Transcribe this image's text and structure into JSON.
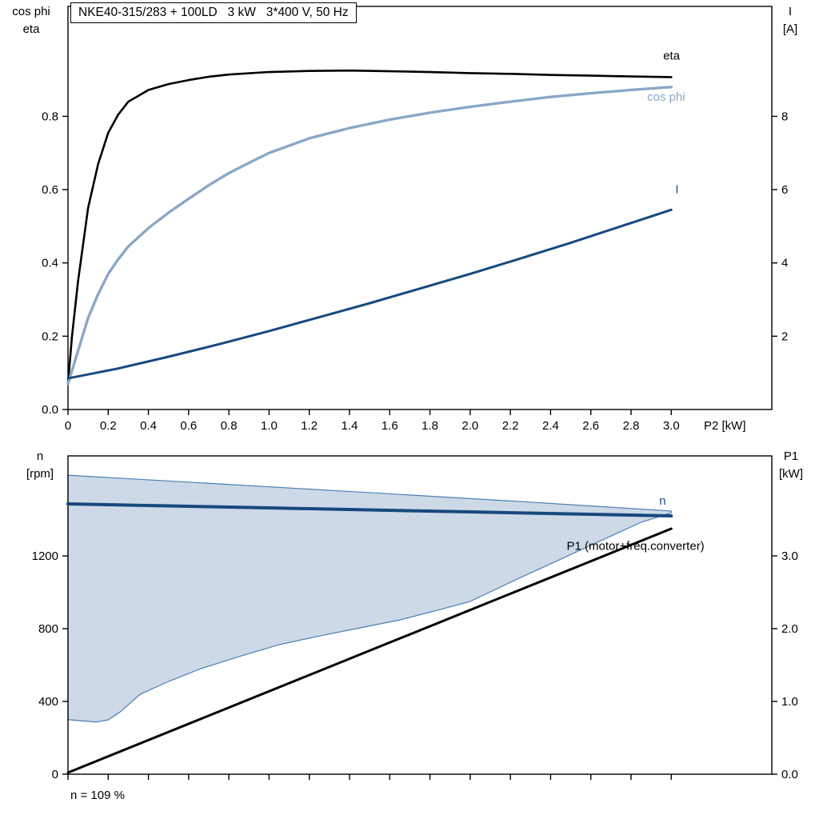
{
  "axis_titles": {
    "top_left_line1": "cos phi",
    "top_left_line2": "eta",
    "top_right_line1": "I",
    "top_right_line2": "[A]",
    "bottom_left_line1": "n",
    "bottom_left_line2": "[rpm]",
    "bottom_right_line1": "P1",
    "bottom_right_line2": "[kW]"
  },
  "colors": {
    "eta": "#000000",
    "cos_phi": "#8aa7c7",
    "current": "#17497e",
    "speed": "#17497e",
    "p1": "#000000",
    "band_fill": "#cdd9e6",
    "band_stroke": "#4a7fb5",
    "axis": "#000000"
  },
  "chart_data": [
    {
      "name": "chart-p2-eta-cosphi-current",
      "type": "line",
      "title": "NKE40-315/283 + 100LD   3 kW   3*400 V, 50 Hz",
      "xlabel": "P2 [kW]",
      "ylabel_left": "cos phi / eta",
      "ylabel_right": "I [A]",
      "grid": false,
      "legend_position": "inline-labels",
      "xlim": [
        0,
        3.5
      ],
      "ylim_left": [
        0,
        1.1
      ],
      "ylim_right": [
        0,
        11
      ],
      "x_ticks": [
        0,
        0.2,
        0.4,
        0.6,
        0.8,
        1.0,
        1.2,
        1.4,
        1.6,
        1.8,
        2.0,
        2.2,
        2.4,
        2.6,
        2.8,
        3.0
      ],
      "x_tick_labels": [
        "0",
        "0.2",
        "0.4",
        "0.6",
        "0.8",
        "1.0",
        "1.2",
        "1.4",
        "1.6",
        "1.8",
        "2.0",
        "2.2",
        "2.4",
        "2.6",
        "2.8",
        "3.0"
      ],
      "y_ticks_left": [
        0,
        0.2,
        0.4,
        0.6,
        0.8
      ],
      "y_tick_labels_left": [
        "0.0",
        "0.2",
        "0.4",
        "0.6",
        "0.8"
      ],
      "y_ticks_right": [
        2,
        4,
        6,
        8
      ],
      "y_tick_labels_right": [
        "2",
        "4",
        "6",
        "8"
      ],
      "series": [
        {
          "name": "eta",
          "axis": "left",
          "color_key": "eta",
          "width": 2.6,
          "label": "eta",
          "label_at": [
            2.96,
            0.955
          ],
          "x": [
            0,
            0.02,
            0.05,
            0.1,
            0.15,
            0.2,
            0.25,
            0.3,
            0.4,
            0.5,
            0.6,
            0.7,
            0.8,
            1.0,
            1.2,
            1.4,
            1.6,
            1.8,
            2.0,
            2.2,
            2.4,
            2.6,
            2.8,
            3.0
          ],
          "y": [
            0.07,
            0.2,
            0.35,
            0.55,
            0.67,
            0.755,
            0.805,
            0.84,
            0.872,
            0.888,
            0.899,
            0.908,
            0.914,
            0.921,
            0.924,
            0.925,
            0.923,
            0.921,
            0.918,
            0.916,
            0.913,
            0.911,
            0.909,
            0.907
          ]
        },
        {
          "name": "cos phi",
          "axis": "left",
          "color_key": "cos_phi",
          "width": 3.4,
          "label": "cos phi",
          "label_at": [
            2.88,
            0.842
          ],
          "x": [
            0,
            0.05,
            0.1,
            0.15,
            0.2,
            0.25,
            0.3,
            0.4,
            0.5,
            0.6,
            0.7,
            0.8,
            0.9,
            1.0,
            1.2,
            1.4,
            1.6,
            1.8,
            2.0,
            2.2,
            2.4,
            2.6,
            2.8,
            3.0
          ],
          "y": [
            0.07,
            0.16,
            0.25,
            0.315,
            0.37,
            0.41,
            0.445,
            0.495,
            0.537,
            0.575,
            0.612,
            0.645,
            0.673,
            0.7,
            0.74,
            0.768,
            0.791,
            0.81,
            0.826,
            0.84,
            0.853,
            0.863,
            0.872,
            0.88
          ]
        },
        {
          "name": "I",
          "axis": "right",
          "color_key": "current",
          "width": 3,
          "label": "I",
          "label_at": [
            3.02,
            5.9
          ],
          "x": [
            0,
            0.25,
            0.5,
            0.75,
            1.0,
            1.25,
            1.5,
            1.75,
            2.0,
            2.25,
            2.5,
            2.75,
            3.0
          ],
          "y": [
            0.85,
            1.12,
            1.44,
            1.78,
            2.14,
            2.52,
            2.9,
            3.3,
            3.7,
            4.12,
            4.55,
            5.0,
            5.45
          ]
        }
      ]
    },
    {
      "name": "chart-p2-speed-p1",
      "type": "line",
      "title": "",
      "xlabel": "",
      "ylabel_left": "n [rpm]",
      "ylabel_right": "P1 [kW]",
      "grid": false,
      "legend_position": "inline-labels",
      "annotation": "n = 109 %",
      "xlim": [
        0,
        3.5
      ],
      "ylim_left": [
        0,
        1750
      ],
      "ylim_right": [
        0,
        4.374
      ],
      "x_ticks": [
        0,
        0.2,
        0.4,
        0.6,
        0.8,
        1.0,
        1.2,
        1.4,
        1.6,
        1.8,
        2.0,
        2.2,
        2.4,
        2.6,
        2.8,
        3.0
      ],
      "x_tick_labels": [
        "",
        "",
        "",
        "",
        "",
        "",
        "",
        "",
        "",
        "",
        "",
        "",
        "",
        "",
        "",
        ""
      ],
      "y_ticks_left": [
        0,
        400,
        800,
        1200
      ],
      "y_tick_labels_left": [
        "0",
        "400",
        "800",
        "1200"
      ],
      "y_ticks_right": [
        0,
        1,
        2,
        3
      ],
      "y_tick_labels_right": [
        "0.0",
        "1.0",
        "2.0",
        "3.0"
      ],
      "band": {
        "name": "speed-control-range",
        "x_upper": [
          0,
          0.75,
          1.5,
          2.25,
          3.0
        ],
        "y_upper": [
          1644,
          1596,
          1548,
          1499,
          1447
        ],
        "x_lower": [
          0,
          0.14,
          0.2,
          0.26,
          0.36,
          0.5,
          0.66,
          0.86,
          1.05,
          1.25,
          1.45,
          1.65,
          1.85,
          2.0,
          2.25,
          2.45,
          2.65,
          2.85,
          3.0
        ],
        "y_lower": [
          300,
          287,
          299,
          343,
          440,
          510,
          580,
          650,
          712,
          760,
          804,
          848,
          905,
          950,
          1081,
          1182,
          1284,
          1385,
          1437
        ]
      },
      "series": [
        {
          "name": "n",
          "axis": "left",
          "color_key": "speed",
          "width": 4,
          "label": "n",
          "label_at": [
            2.94,
            1482
          ],
          "x": [
            0,
            1,
            2,
            3
          ],
          "y": [
            1486,
            1464,
            1442,
            1420
          ]
        },
        {
          "name": "P1 (motor+freq.converter)",
          "axis": "right",
          "color_key": "p1",
          "width": 3,
          "label": "P1 (motor+freq.converter)",
          "label_at": [
            2.48,
            3.08
          ],
          "x": [
            0,
            3.0
          ],
          "y": [
            0.022,
            3.374
          ]
        }
      ]
    }
  ]
}
